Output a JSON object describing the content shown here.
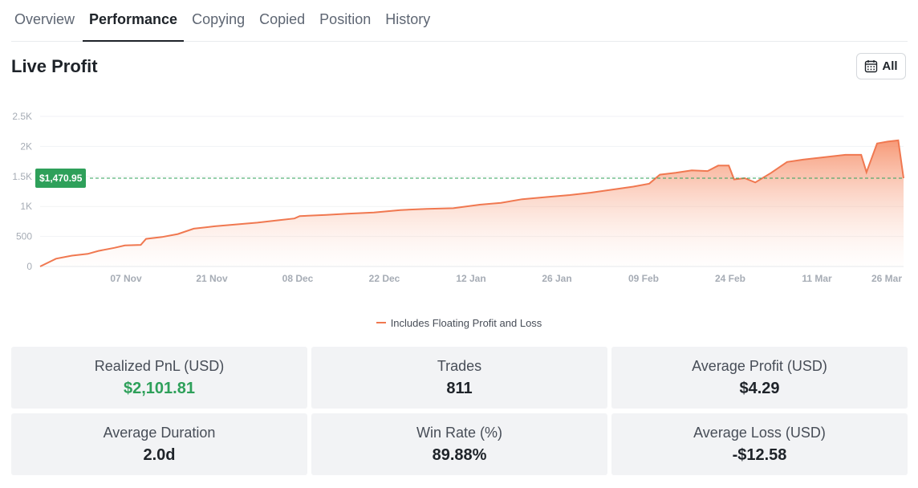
{
  "tabs": [
    {
      "label": "Overview",
      "active": false
    },
    {
      "label": "Performance",
      "active": true
    },
    {
      "label": "Copying",
      "active": false
    },
    {
      "label": "Copied",
      "active": false
    },
    {
      "label": "Position",
      "active": false
    },
    {
      "label": "History",
      "active": false
    }
  ],
  "header": {
    "title": "Live Profit",
    "range_label": "All",
    "range_icon": "calendar-icon"
  },
  "colors": {
    "line": "#f07850",
    "positive": "#2ea05a",
    "reference_line": "#2ea05a"
  },
  "chart_data": {
    "type": "area",
    "title": "",
    "x_tick_labels": [
      "07 Nov",
      "21 Nov",
      "08 Dec",
      "22 Dec",
      "12 Jan",
      "26 Jan",
      "09 Feb",
      "24 Feb",
      "11 Mar",
      "26 Mar"
    ],
    "y_tick_labels": [
      "0",
      "500",
      "1K",
      "1.5K",
      "2K",
      "2.5K"
    ],
    "ylim": [
      0,
      2500
    ],
    "grid": "horizontal",
    "current_value": 1470.95,
    "current_value_label": "$1,470.95",
    "legend": [
      {
        "name": "Includes Floating Profit and Loss",
        "color": "#f07850"
      }
    ],
    "legend_position": "bottom",
    "series": [
      {
        "name": "Includes Floating Profit and Loss",
        "points": [
          [
            "Oct 25",
            0
          ],
          [
            "Oct 28",
            130
          ],
          [
            "Oct 31",
            180
          ],
          [
            "Nov 3",
            210
          ],
          [
            "Nov 5",
            260
          ],
          [
            "Nov 8",
            310
          ],
          [
            "Nov 10",
            350
          ],
          [
            "Nov 13",
            360
          ],
          [
            "Nov 14",
            460
          ],
          [
            "Nov 17",
            490
          ],
          [
            "Nov 20",
            540
          ],
          [
            "Nov 23",
            630
          ],
          [
            "Nov 27",
            670
          ],
          [
            "Dec 1",
            700
          ],
          [
            "Dec 5",
            730
          ],
          [
            "Dec 9",
            770
          ],
          [
            "Dec 12",
            800
          ],
          [
            "Dec 13",
            840
          ],
          [
            "Dec 18",
            860
          ],
          [
            "Dec 22",
            880
          ],
          [
            "Dec 27",
            900
          ],
          [
            "Jan 1",
            940
          ],
          [
            "Jan 6",
            960
          ],
          [
            "Jan 11",
            970
          ],
          [
            "Jan 16",
            1030
          ],
          [
            "Jan 20",
            1060
          ],
          [
            "Jan 24",
            1120
          ],
          [
            "Jan 29",
            1160
          ],
          [
            "Feb 2",
            1190
          ],
          [
            "Feb 6",
            1230
          ],
          [
            "Feb 10",
            1280
          ],
          [
            "Feb 14",
            1330
          ],
          [
            "Feb 17",
            1380
          ],
          [
            "Feb 19",
            1530
          ],
          [
            "Feb 22",
            1560
          ],
          [
            "Feb 25",
            1600
          ],
          [
            "Feb 28",
            1590
          ],
          [
            "Mar 2",
            1680
          ],
          [
            "Mar 4",
            1680
          ],
          [
            "Mar 5",
            1450
          ],
          [
            "Mar 7",
            1470
          ],
          [
            "Mar 9",
            1400
          ],
          [
            "Mar 12",
            1560
          ],
          [
            "Mar 15",
            1740
          ],
          [
            "Mar 18",
            1780
          ],
          [
            "Mar 22",
            1820
          ],
          [
            "Mar 26",
            1860
          ],
          [
            "Mar 29",
            1860
          ],
          [
            "Mar 30",
            1570
          ],
          [
            "Apr 1",
            2050
          ],
          [
            "Apr 3",
            2080
          ],
          [
            "Apr 5",
            2100
          ],
          [
            "Apr 6",
            1470
          ]
        ]
      }
    ]
  },
  "stats": [
    {
      "label": "Realized PnL (USD)",
      "value": "$2,101.81",
      "positive": true
    },
    {
      "label": "Trades",
      "value": "811",
      "positive": false
    },
    {
      "label": "Average Profit (USD)",
      "value": "$4.29",
      "positive": false
    },
    {
      "label": "Average Duration",
      "value": "2.0d",
      "positive": false
    },
    {
      "label": "Win Rate (%)",
      "value": "89.88%",
      "positive": false
    },
    {
      "label": "Average Loss (USD)",
      "value": "-$12.58",
      "positive": false
    }
  ]
}
